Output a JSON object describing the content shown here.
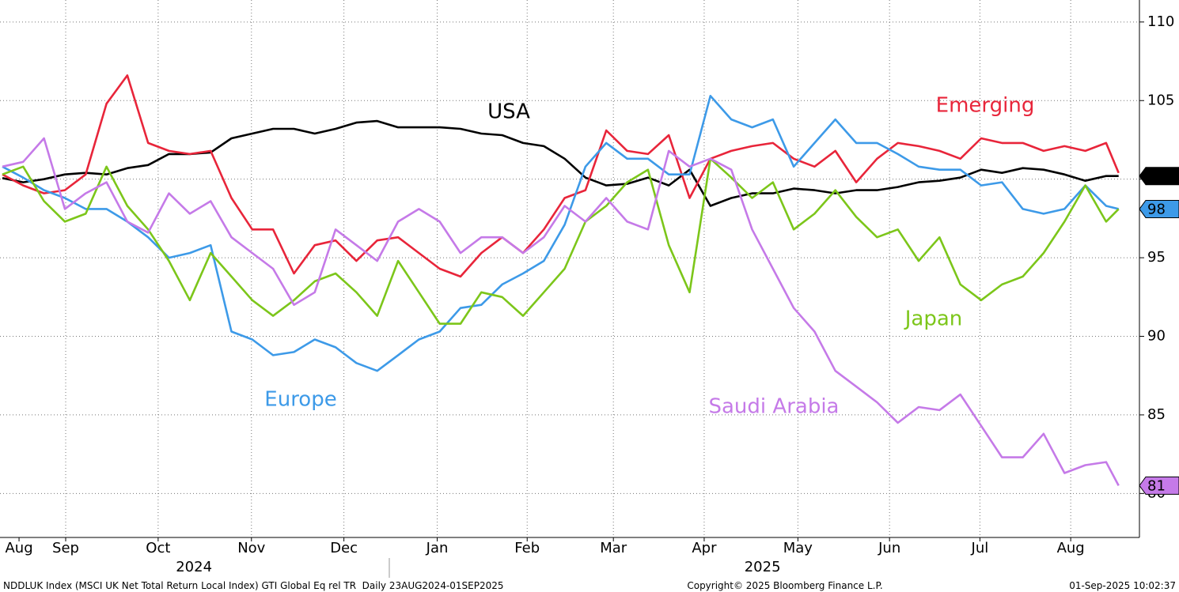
{
  "chart_data": {
    "type": "line",
    "x": [
      0,
      5,
      10,
      15,
      20,
      25,
      30,
      35,
      40,
      45,
      50,
      55,
      60,
      65,
      70,
      75,
      80,
      85,
      90,
      95,
      100,
      105,
      110,
      115,
      120,
      125,
      130,
      135,
      140,
      145,
      150,
      155,
      160,
      165,
      170,
      175,
      180,
      185,
      190,
      195,
      200,
      205,
      210,
      215,
      220,
      225,
      230,
      235,
      240,
      245,
      250,
      255,
      260,
      265,
      268
    ],
    "xlim": [
      0,
      273
    ],
    "xticks": [
      {
        "value": 4,
        "label": "Aug"
      },
      {
        "value": 15.2,
        "label": "Sep"
      },
      {
        "value": 37.4,
        "label": "Oct"
      },
      {
        "value": 59.8,
        "label": "Nov"
      },
      {
        "value": 82,
        "label": "Dec"
      },
      {
        "value": 104.4,
        "label": "Jan"
      },
      {
        "value": 126,
        "label": "Feb"
      },
      {
        "value": 146.7,
        "label": "Mar"
      },
      {
        "value": 168.5,
        "label": "Apr"
      },
      {
        "value": 191,
        "label": "May"
      },
      {
        "value": 213,
        "label": "Jun"
      },
      {
        "value": 234.7,
        "label": "Jul"
      },
      {
        "value": 256.5,
        "label": "Aug"
      }
    ],
    "year_labels": [
      {
        "value": 46,
        "label": "2024"
      },
      {
        "value": 182.5,
        "label": "2025"
      }
    ],
    "ylim": [
      77.2,
      111.4
    ],
    "yticks": [
      80,
      85,
      90,
      95,
      100,
      105,
      110
    ],
    "grid": true,
    "series": [
      {
        "name": "USA",
        "color": "#000000",
        "end_label": "100",
        "values": [
          100.07,
          99.8,
          100,
          100.3,
          100.4,
          100.3,
          100.7,
          100.9,
          101.6,
          101.6,
          101.7,
          102.6,
          102.9,
          103.2,
          103.2,
          102.9,
          103.2,
          103.6,
          103.7,
          103.3,
          103.3,
          103.3,
          103.2,
          102.9,
          102.8,
          102.3,
          102.1,
          101.3,
          100.1,
          99.6,
          99.7,
          100.1,
          99.6,
          100.6,
          98.3,
          98.8,
          99.1,
          99.1,
          99.4,
          99.3,
          99.1,
          99.3,
          99.3,
          99.5,
          99.8,
          99.9,
          100.1,
          100.6,
          100.4,
          100.7,
          100.6,
          100.3,
          99.9,
          100.2,
          100.2
        ]
      },
      {
        "name": "Emerging",
        "color": "#e8253a",
        "values": [
          100.3,
          99.6,
          99.1,
          99.3,
          100.3,
          104.8,
          106.6,
          102.3,
          101.8,
          101.6,
          101.8,
          98.8,
          96.8,
          96.8,
          94.0,
          95.8,
          96.1,
          94.8,
          96.1,
          96.3,
          95.3,
          94.3,
          93.8,
          95.3,
          96.3,
          95.3,
          96.8,
          98.8,
          99.3,
          103.1,
          101.8,
          101.6,
          102.8,
          98.8,
          101.3,
          101.8,
          102.1,
          102.3,
          101.3,
          100.8,
          101.8,
          99.8,
          101.3,
          102.3,
          102.1,
          101.8,
          101.3,
          102.6,
          102.3,
          102.3,
          101.8,
          102.1,
          101.8,
          102.3,
          100.4
        ]
      },
      {
        "name": "Europe",
        "color": "#3d9ae8",
        "end_label": "98",
        "values": [
          100.8,
          100.1,
          99.3,
          98.8,
          98.1,
          98.1,
          97.3,
          96.3,
          95.0,
          95.3,
          95.8,
          90.3,
          89.8,
          88.8,
          89.0,
          89.8,
          89.3,
          88.3,
          87.8,
          88.8,
          89.8,
          90.3,
          91.8,
          92.0,
          93.3,
          94.0,
          94.8,
          97.1,
          100.8,
          102.3,
          101.3,
          101.3,
          100.3,
          100.3,
          105.3,
          103.8,
          103.3,
          103.8,
          100.8,
          102.3,
          103.8,
          102.3,
          102.3,
          101.6,
          100.8,
          100.6,
          100.6,
          99.6,
          99.8,
          98.1,
          97.8,
          98.1,
          99.6,
          98.3,
          98.1
        ]
      },
      {
        "name": "Japan",
        "color": "#7cc61a",
        "values": [
          100.3,
          100.8,
          98.6,
          97.3,
          97.8,
          100.8,
          98.3,
          96.8,
          94.8,
          92.3,
          95.3,
          93.8,
          92.3,
          91.3,
          92.3,
          93.5,
          94.0,
          92.8,
          91.3,
          94.8,
          92.8,
          90.8,
          90.8,
          92.8,
          92.5,
          91.3,
          92.8,
          94.3,
          97.3,
          98.3,
          99.8,
          100.6,
          95.8,
          92.8,
          101.3,
          100.1,
          98.8,
          99.8,
          96.8,
          97.8,
          99.3,
          97.6,
          96.3,
          96.8,
          94.8,
          96.3,
          93.3,
          92.3,
          93.3,
          93.8,
          95.3,
          97.3,
          99.6,
          97.3,
          98.1
        ]
      },
      {
        "name": "Saudi Arabia",
        "color": "#c57ae8",
        "end_label": "81",
        "values": [
          100.8,
          101.1,
          102.6,
          98.1,
          99.1,
          99.8,
          97.3,
          96.6,
          99.1,
          97.8,
          98.6,
          96.3,
          95.3,
          94.3,
          92.0,
          92.8,
          96.8,
          95.8,
          94.8,
          97.3,
          98.1,
          97.3,
          95.3,
          96.3,
          96.3,
          95.3,
          96.3,
          98.3,
          97.3,
          98.8,
          97.3,
          96.8,
          101.8,
          100.8,
          101.3,
          100.6,
          96.8,
          94.3,
          91.8,
          90.3,
          87.8,
          86.8,
          85.8,
          84.5,
          85.5,
          85.3,
          86.3,
          84.3,
          82.3,
          82.3,
          83.8,
          81.3,
          81.8,
          82.0,
          80.5
        ]
      }
    ],
    "footer": {
      "left": "NDDLUK Index (MSCI UK Net Total Return Local Index) GTI Global Eq rel TR  Daily 23AUG2024-01SEP2025",
      "center": "Copyright© 2025 Bloomberg Finance L.P.",
      "right": "01-Sep-2025 10:02:37"
    }
  }
}
